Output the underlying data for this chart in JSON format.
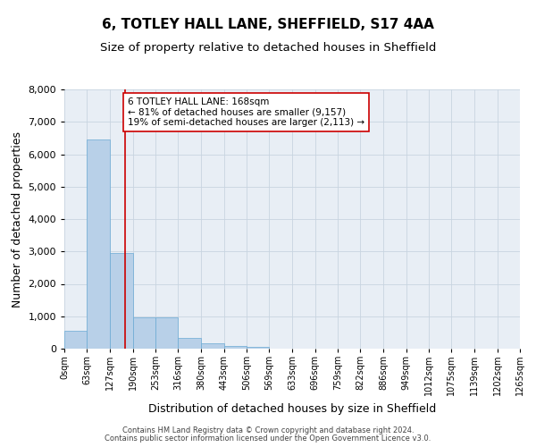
{
  "title": "6, TOTLEY HALL LANE, SHEFFIELD, S17 4AA",
  "subtitle": "Size of property relative to detached houses in Sheffield",
  "xlabel": "Distribution of detached houses by size in Sheffield",
  "ylabel": "Number of detached properties",
  "bin_edges": [
    0,
    63,
    127,
    190,
    253,
    316,
    380,
    443,
    506,
    569,
    633,
    696,
    759,
    822,
    886,
    949,
    1012,
    1075,
    1139,
    1202,
    1265
  ],
  "bar_heights": [
    550,
    6450,
    2950,
    970,
    970,
    340,
    170,
    90,
    60,
    0,
    0,
    0,
    0,
    0,
    0,
    0,
    0,
    0,
    0,
    0
  ],
  "bar_color": "#b8d0e8",
  "bar_edgecolor": "#6aaad4",
  "grid_color": "#c8d4e0",
  "background_color": "#e8eef5",
  "property_size": 168,
  "vline_color": "#cc0000",
  "annotation_line1": "6 TOTLEY HALL LANE: 168sqm",
  "annotation_line2": "← 81% of detached houses are smaller (9,157)",
  "annotation_line3": "19% of semi-detached houses are larger (2,113) →",
  "annotation_box_color": "#cc0000",
  "ylim": [
    0,
    8000
  ],
  "yticks": [
    0,
    1000,
    2000,
    3000,
    4000,
    5000,
    6000,
    7000,
    8000
  ],
  "footer_line1": "Contains HM Land Registry data © Crown copyright and database right 2024.",
  "footer_line2": "Contains public sector information licensed under the Open Government Licence v3.0.",
  "title_fontsize": 11,
  "subtitle_fontsize": 9.5,
  "tick_fontsize": 7,
  "ylabel_fontsize": 9,
  "xlabel_fontsize": 9,
  "annotation_fontsize": 7.5,
  "footer_fontsize": 6
}
